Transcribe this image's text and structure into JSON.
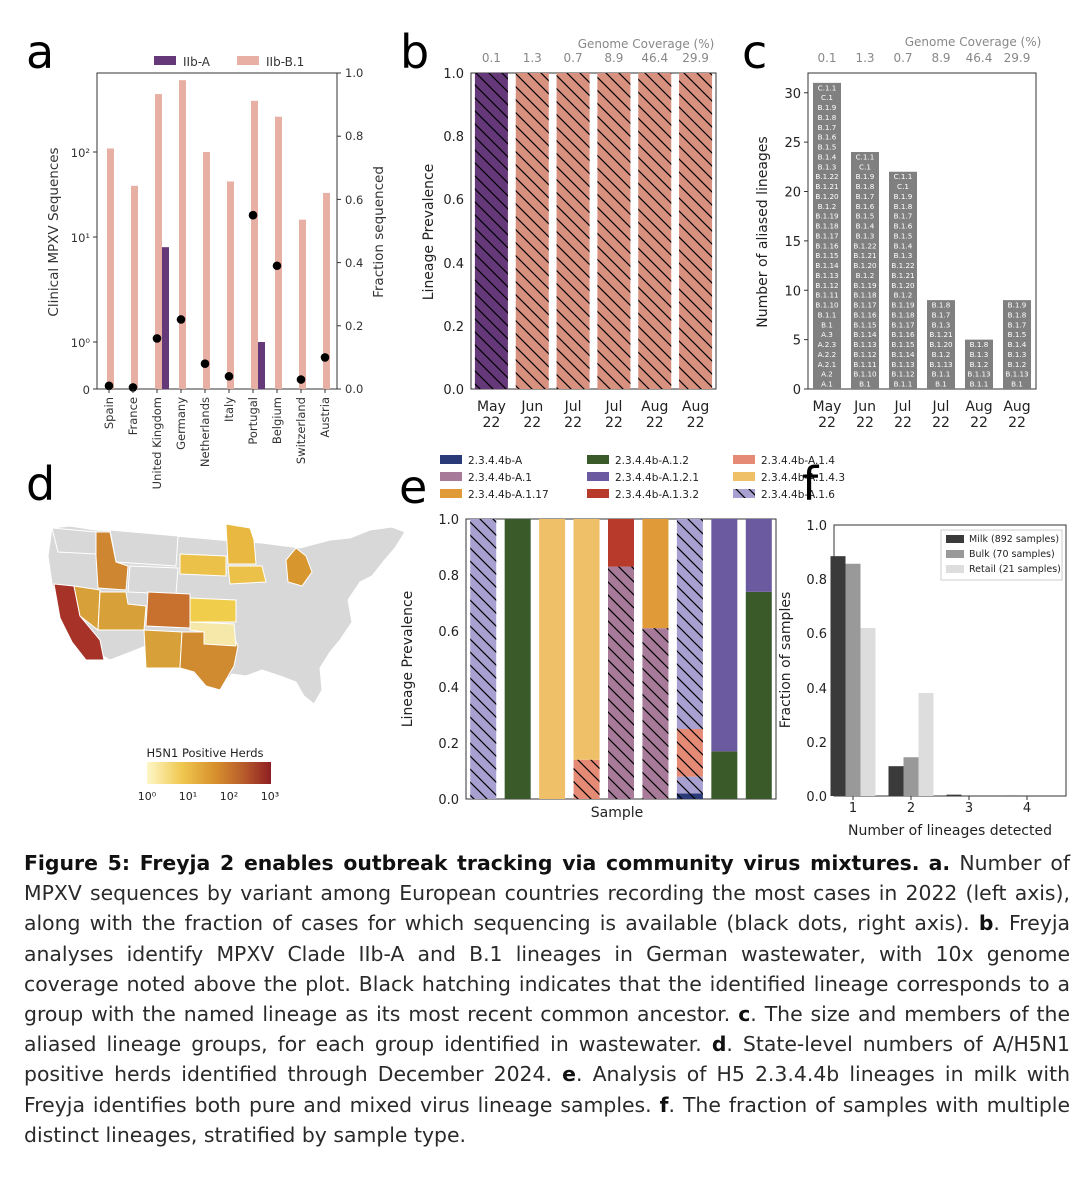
{
  "colors": {
    "iib_a": "#65387a",
    "iib_b1": "#e8b0a4",
    "bar_c": "#808080",
    "dot": "#000000",
    "map_base": "#d8d8d8",
    "map_scale": [
      "#fdf7c8",
      "#f0c850",
      "#d7902c",
      "#b75c2c",
      "#8e1e22"
    ],
    "f_series": [
      "#3a3a3a",
      "#999999",
      "#dddddd"
    ]
  },
  "panel_a": {
    "letter": "a",
    "legend": [
      "IIb-A",
      "IIb-B.1"
    ],
    "ylabel_left": "Clinical MPXV Sequences",
    "ylabel_right": "Fraction sequenced",
    "left_ticks": [
      "10²",
      "10¹",
      "10⁰",
      "0"
    ],
    "right_ticks": [
      "0.0",
      "0.2",
      "0.4",
      "0.6",
      "0.8",
      "1.0"
    ]
  },
  "panel_b": {
    "letter": "b",
    "top_title": "Genome Coverage (%)",
    "ylabel": "Lineage Prevalence",
    "yticks": [
      "0.0",
      "0.2",
      "0.4",
      "0.6",
      "0.8",
      "1.0"
    ]
  },
  "panel_c": {
    "letter": "c",
    "top_title": "Genome Coverage (%)",
    "ylabel": "Number of aliased lineages",
    "yticks": [
      "0",
      "5",
      "10",
      "15",
      "20",
      "25",
      "30"
    ]
  },
  "panel_d": {
    "letter": "d",
    "colorbar_title": "H5N1 Positive Herds",
    "colorbar_ticks": [
      "10⁰",
      "10¹",
      "10²",
      "10³"
    ]
  },
  "panel_e": {
    "letter": "e",
    "ylabel": "Lineage Prevalence",
    "xlabel": "Sample",
    "yticks": [
      "0.0",
      "0.2",
      "0.4",
      "0.6",
      "0.8",
      "1.0"
    ],
    "legend": [
      {
        "label": "2.3.4.4b-A",
        "color": "#2a3a78",
        "hatch": false
      },
      {
        "label": "2.3.4.4b-A.1.2",
        "color": "#3b5a2a",
        "hatch": false
      },
      {
        "label": "2.3.4.4b-A.1.4",
        "color": "#e58a74",
        "hatch": false
      },
      {
        "label": "2.3.4.4b-A.1",
        "color": "#a77a9a",
        "hatch": false
      },
      {
        "label": "2.3.4.4b-A.1.2.1",
        "color": "#6b5aa0",
        "hatch": false
      },
      {
        "label": "2.3.4.4b-A.1.4.3",
        "color": "#f0c068",
        "hatch": false
      },
      {
        "label": "2.3.4.4b-A.1.17",
        "color": "#e09a38",
        "hatch": false
      },
      {
        "label": "2.3.4.4b-A.1.3.2",
        "color": "#b83a2a",
        "hatch": false
      },
      {
        "label": "2.3.4.4b-A.1.6",
        "color": "#a8a0d0",
        "hatch": true
      }
    ]
  },
  "panel_f": {
    "letter": "f",
    "ylabel": "Fraction of samples",
    "xlabel": "Number of lineages detected",
    "yticks": [
      "0.0",
      "0.2",
      "0.4",
      "0.6",
      "0.8",
      "1.0"
    ]
  },
  "chart_data": [
    {
      "type": "bar",
      "panel": "a",
      "categories": [
        "Spain",
        "France",
        "United Kingdom",
        "Germany",
        "Netherlands",
        "Italy",
        "Portugal",
        "Belgium",
        "Switzerland",
        "Austria"
      ],
      "series": [
        {
          "name": "IIb-A",
          "values": [
            0,
            0,
            8,
            0,
            0,
            0,
            1,
            0,
            0,
            0
          ]
        },
        {
          "name": "IIb-B.1",
          "values": [
            110,
            40,
            480,
            700,
            100,
            45,
            400,
            260,
            16,
            33
          ]
        },
        {
          "values": [
            0.01,
            0.005,
            0.16,
            0.22,
            0.08,
            0.04,
            0.55,
            0.39,
            0.03,
            0.1
          ]
        }
      ],
      "yscale_left": "symlog",
      "ylim_left": [
        0,
        1000
      ],
      "ylim_right": [
        0,
        1.0
      ],
      "legend_position": "top"
    },
    {
      "type": "bar",
      "panel": "b",
      "categories": [
        "May\n22",
        "Jun\n22",
        "Jul\n22",
        "Jul\n22",
        "Aug\n22",
        "Aug\n22"
      ],
      "coverage": [
        "0.1",
        "1.3",
        "0.7",
        "8.9",
        "46.4",
        "29.9"
      ],
      "series": [
        {
          "name": "IIb-A",
          "values": [
            1,
            0,
            0,
            0,
            0,
            0
          ]
        },
        {
          "name": "IIb-B.1",
          "values": [
            0,
            1,
            1,
            1,
            1,
            1
          ]
        }
      ],
      "ylim": [
        0,
        1.0
      ]
    },
    {
      "type": "bar",
      "panel": "c",
      "categories": [
        "May\n22",
        "Jun\n22",
        "Jul\n22",
        "Jul\n22",
        "Aug\n22",
        "Aug\n22"
      ],
      "coverage": [
        "0.1",
        "1.3",
        "0.7",
        "8.9",
        "46.4",
        "29.9"
      ],
      "values": [
        31,
        24,
        22,
        9,
        5,
        9
      ],
      "members": [
        [
          "C.1.1",
          "C.1",
          "B.1.9",
          "B.1.8",
          "B.1.7",
          "B.1.6",
          "B.1.5",
          "B.1.4",
          "B.1.3",
          "B.1.22",
          "B.1.21",
          "B.1.20",
          "B.1.2",
          "B.1.19",
          "B.1.18",
          "B.1.17",
          "B.1.16",
          "B.1.15",
          "B.1.14",
          "B.1.13",
          "B.1.12",
          "B.1.11",
          "B.1.10",
          "B.1.1",
          "B.1",
          "A.3",
          "A.2.3",
          "A.2.2",
          "A.2.1",
          "A.2",
          "A.1"
        ],
        [
          "C.1.1",
          "C.1",
          "B.1.9",
          "B.1.8",
          "B.1.7",
          "B.1.6",
          "B.1.5",
          "B.1.4",
          "B.1.3",
          "B.1.22",
          "B.1.21",
          "B.1.20",
          "B.1.2",
          "B.1.19",
          "B.1.18",
          "B.1.17",
          "B.1.16",
          "B.1.15",
          "B.1.14",
          "B.1.13",
          "B.1.12",
          "B.1.11",
          "B.1.10",
          "B.1"
        ],
        [
          "C.1.1",
          "C.1",
          "B.1.9",
          "B.1.8",
          "B.1.7",
          "B.1.6",
          "B.1.5",
          "B.1.4",
          "B.1.3",
          "B.1.22",
          "B.1.21",
          "B.1.20",
          "B.1.2",
          "B.1.19",
          "B.1.18",
          "B.1.17",
          "B.1.16",
          "B.1.15",
          "B.1.14",
          "B.1.13",
          "B.1.12",
          "B.1.1"
        ],
        [
          "B.1.8",
          "B.1.7",
          "B.1.3",
          "B.1.21",
          "B.1.20",
          "B.1.2",
          "B.1.13",
          "B.1.1",
          "B.1"
        ],
        [
          "B.1.8",
          "B.1.3",
          "B.1.2",
          "B.1.13",
          "B.1.1"
        ],
        [
          "B.1.9",
          "B.1.8",
          "B.1.7",
          "B.1.5",
          "B.1.4",
          "B.1.3",
          "B.1.2",
          "B.1.13",
          "B.1"
        ]
      ],
      "ylim": [
        0,
        32
      ]
    },
    {
      "type": "heatmap",
      "panel": "d",
      "scale": "log",
      "range": [
        1,
        1000
      ],
      "states": [
        {
          "name": "CA",
          "value": 700
        },
        {
          "name": "ID",
          "value": 35
        },
        {
          "name": "CO",
          "value": 65
        },
        {
          "name": "TX",
          "value": 28
        },
        {
          "name": "MI",
          "value": 30
        },
        {
          "name": "MN",
          "value": 9
        },
        {
          "name": "SD",
          "value": 12
        },
        {
          "name": "IA",
          "value": 13
        },
        {
          "name": "UT",
          "value": 13
        },
        {
          "name": "KS",
          "value": 4
        },
        {
          "name": "NM",
          "value": 9
        },
        {
          "name": "OK",
          "value": 2
        },
        {
          "name": "NV",
          "value": 7
        }
      ]
    },
    {
      "type": "bar",
      "panel": "e",
      "samples": 9,
      "segments": [
        [
          {
            "s": 8,
            "v": 1.0
          }
        ],
        [
          {
            "s": 1,
            "v": 1.0
          }
        ],
        [
          {
            "s": 5,
            "v": 1.0
          }
        ],
        [
          {
            "s": 2,
            "v": 0.14
          },
          {
            "s": 5,
            "v": 0.86
          }
        ],
        [
          {
            "s": 3,
            "v": 0.83
          },
          {
            "s": 7,
            "v": 0.17
          }
        ],
        [
          {
            "s": 3,
            "v": 0.61
          },
          {
            "s": 6,
            "v": 0.39
          }
        ],
        [
          {
            "s": 0,
            "v": 0.02
          },
          {
            "s": 8,
            "v": 0.06
          },
          {
            "s": 3,
            "v": 0.0
          },
          {
            "s": 2,
            "v": 0.17
          },
          {
            "s": 8,
            "v": 0.75
          }
        ],
        [
          {
            "s": 1,
            "v": 0.17
          },
          {
            "s": 4,
            "v": 0.83
          }
        ],
        [
          {
            "s": 1,
            "v": 0.74
          },
          {
            "s": 4,
            "v": 0.26
          }
        ]
      ],
      "ylim": [
        0,
        1.0
      ]
    },
    {
      "type": "bar",
      "panel": "f",
      "categories": [
        "1",
        "2",
        "3",
        "4"
      ],
      "series": [
        {
          "name": "Milk (892 samples)",
          "values": [
            0.885,
            0.11,
            0.005,
            0.002
          ]
        },
        {
          "name": "Bulk (70 samples)",
          "values": [
            0.857,
            0.143,
            0,
            0
          ]
        },
        {
          "name": "Retail (21 samples)",
          "values": [
            0.62,
            0.38,
            0,
            0
          ]
        }
      ],
      "ylim": [
        0,
        1.0
      ],
      "legend_position": "top-right"
    }
  ],
  "caption": {
    "title": "Figure 5: Freyja 2 enables outbreak tracking via community virus mixtures.",
    "a_letter": "a.",
    "a_text": "Number of MPXV sequences by variant among European countries recording the most cases in 2022 (left axis), along with the fraction of cases for which sequencing is available (black dots, right axis).",
    "b_letter": "b",
    "b_text": ". Freyja analyses identify MPXV Clade IIb-A and B.1 lineages in German wastewater, with 10x genome coverage noted above the plot. Black hatching indicates that the identified lineage corresponds to a group with the named lineage as its most recent common ancestor.",
    "c_letter": "c",
    "c_text": ". The size and members of the aliased lineage groups, for each group identified in wastewater.",
    "d_letter": "d",
    "d_text": ". State-level numbers of A/H5N1 positive herds identified through December 2024.",
    "e_letter": "e",
    "e_text": ". Analysis of H5 2.3.4.4b lineages in milk with Freyja identifies both pure and mixed virus lineage samples.",
    "f_letter": "f",
    "f_text": ". The fraction of samples with multiple distinct lineages, stratified by sample type."
  }
}
